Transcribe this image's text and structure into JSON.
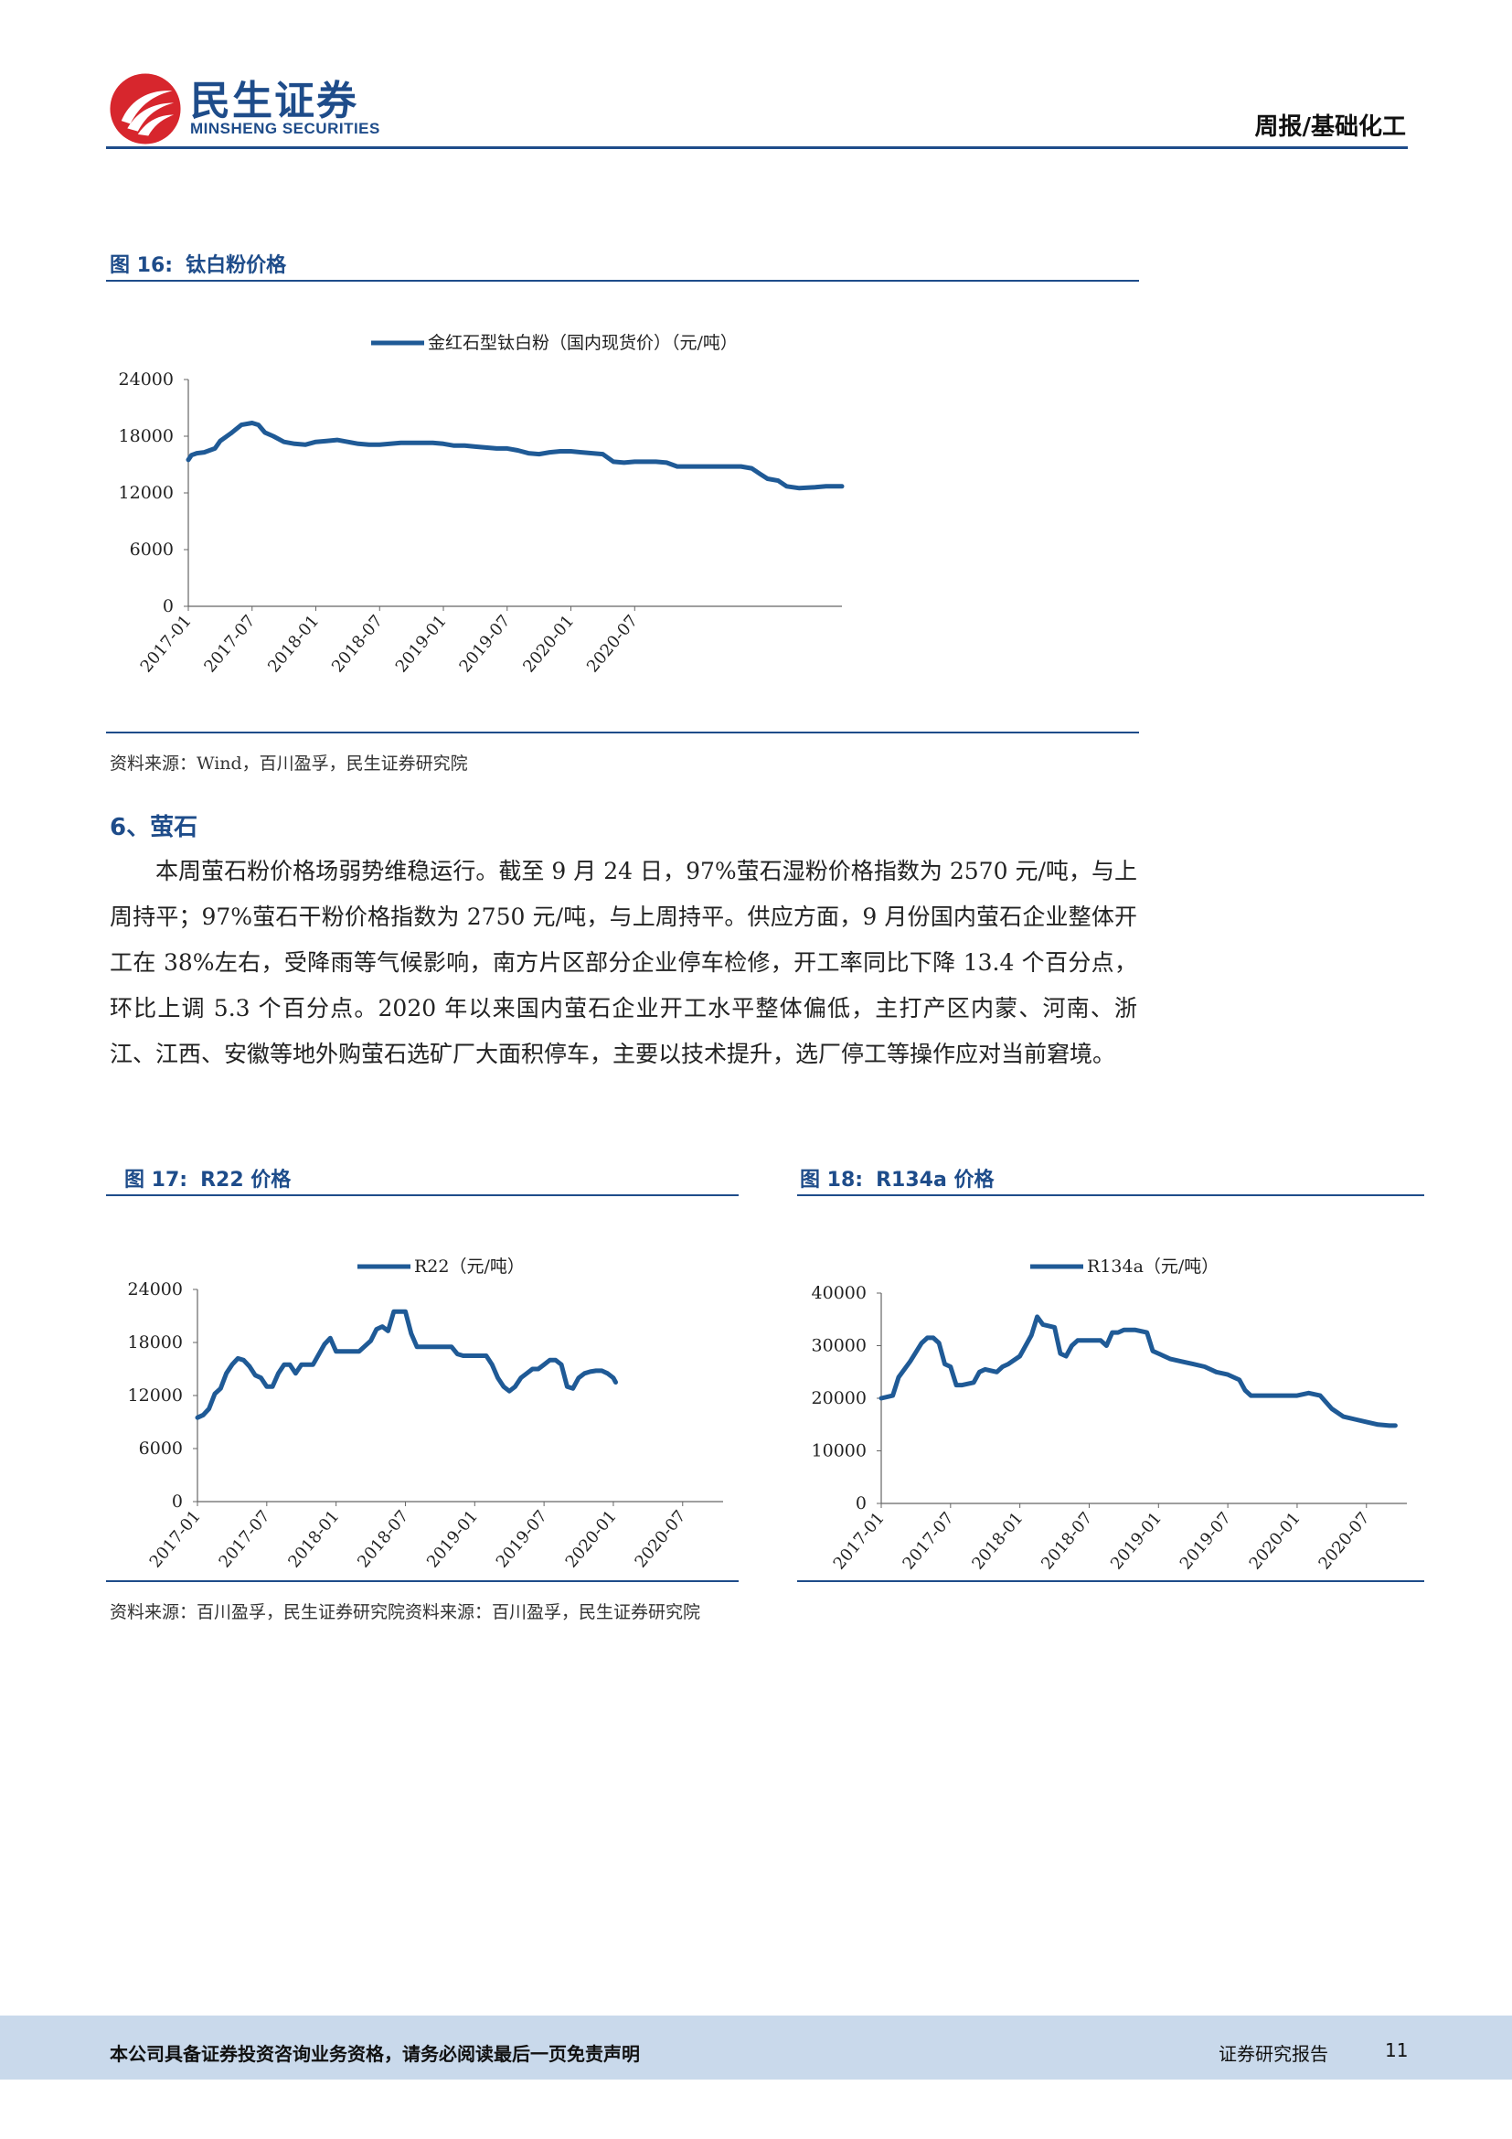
{
  "header": {
    "brand_cn": "民生证券",
    "brand_en": "MINSHENG SECURITIES",
    "category": "周报/基础化工",
    "brand_color": "#1e4c8a",
    "logo_color": "#d7262d"
  },
  "fig16": {
    "title_num": "图 16:",
    "title": "钛白粉价格",
    "source": "资料来源：Wind，百川盈孚，民生证券研究院"
  },
  "section6": {
    "title": "6、萤石",
    "paragraph": "本周萤石粉价格场弱势维稳运行。截至 9 月 24 日，97%萤石湿粉价格指数为 2570 元/吨，与上周持平；97%萤石干粉价格指数为 2750 元/吨，与上周持平。供应方面，9 月份国内萤石企业整体开工在 38%左右，受降雨等气候影响，南方片区部分企业停车检修，开工率同比下降 13.4 个百分点，环比上调 5.3 个百分点。2020 年以来国内萤石企业开工水平整体偏低，主打产区内蒙、河南、浙江、江西、安徽等地外购萤石选矿厂大面积停车，主要以技术提升，选厂停工等操作应对当前窘境。"
  },
  "fig17": {
    "title_num": "图 17:",
    "title": "R22 价格"
  },
  "fig18": {
    "title_num": "图 18:",
    "title": "R134a 价格"
  },
  "source_combined": "资料来源：百川盈孚，民生证券研究院资料来源：百川盈孚，民生证券研究院",
  "footer": {
    "disclaimer": "本公司具备证券投资咨询业务资格，请务必阅读最后一页免责声明",
    "report_type": "证券研究报告",
    "page": "11"
  },
  "chart_data": [
    {
      "type": "line",
      "id": "fig16",
      "series": [
        {
          "name": "金红石型钛白粉（国内现货价）（元/吨）",
          "color": "#1f5a96",
          "points": [
            [
              0,
              15500
            ],
            [
              0.3,
              16000
            ],
            [
              0.8,
              16200
            ],
            [
              1.5,
              16300
            ],
            [
              2.5,
              16700
            ],
            [
              3,
              17500
            ],
            [
              4,
              18300
            ],
            [
              5,
              19200
            ],
            [
              6,
              19400
            ],
            [
              6.6,
              19200
            ],
            [
              7.2,
              18400
            ],
            [
              8,
              18000
            ],
            [
              9,
              17400
            ],
            [
              10,
              17200
            ],
            [
              11,
              17100
            ],
            [
              12,
              17400
            ],
            [
              13,
              17500
            ],
            [
              14,
              17600
            ],
            [
              15,
              17400
            ],
            [
              16,
              17200
            ],
            [
              17,
              17100
            ],
            [
              18,
              17100
            ],
            [
              19,
              17200
            ],
            [
              20,
              17300
            ],
            [
              21,
              17300
            ],
            [
              22,
              17300
            ],
            [
              23,
              17300
            ],
            [
              24,
              17200
            ],
            [
              25,
              17000
            ],
            [
              26,
              17000
            ],
            [
              27,
              16900
            ],
            [
              28,
              16800
            ],
            [
              29,
              16700
            ],
            [
              30,
              16700
            ],
            [
              31,
              16500
            ],
            [
              32,
              16200
            ],
            [
              33,
              16100
            ],
            [
              34,
              16300
            ],
            [
              35,
              16400
            ],
            [
              36,
              16400
            ],
            [
              37,
              16300
            ],
            [
              38,
              16200
            ],
            [
              39,
              16100
            ],
            [
              40,
              15300
            ],
            [
              41,
              15200
            ],
            [
              42,
              15300
            ],
            [
              43,
              15300
            ],
            [
              44,
              15300
            ],
            [
              45,
              15200
            ],
            [
              46,
              14800
            ],
            [
              47,
              14800
            ],
            [
              48,
              14800
            ],
            [
              49,
              14800
            ],
            [
              50,
              14800
            ],
            [
              51,
              14800
            ],
            [
              52,
              14800
            ],
            [
              53,
              14600
            ],
            [
              53.8,
              14000
            ],
            [
              54.5,
              13500
            ],
            [
              55.5,
              13300
            ],
            [
              56.3,
              12700
            ],
            [
              57.5,
              12500
            ],
            [
              59,
              12600
            ],
            [
              60,
              12700
            ],
            [
              61,
              12700
            ],
            [
              61.5,
              12700
            ]
          ]
        }
      ],
      "x_ticks": [
        "2017-01",
        "2017-07",
        "2018-01",
        "2018-07",
        "2019-01",
        "2019-07",
        "2020-01",
        "2020-07"
      ],
      "x_tick_months": [
        0,
        6,
        12,
        18,
        24,
        30,
        36,
        42
      ],
      "xlim": [
        0,
        61.5
      ],
      "y_ticks": [
        0,
        6000,
        12000,
        18000,
        24000
      ],
      "ylim": [
        0,
        24000
      ],
      "legend_position": "top-center"
    },
    {
      "type": "line",
      "id": "fig17",
      "series": [
        {
          "name": "R22（元/吨）",
          "color": "#1f5a96",
          "points": [
            [
              0,
              9500
            ],
            [
              0.5,
              9800
            ],
            [
              1,
              10500
            ],
            [
              1.5,
              12200
            ],
            [
              2,
              12800
            ],
            [
              2.5,
              14500
            ],
            [
              3,
              15500
            ],
            [
              3.5,
              16200
            ],
            [
              4,
              16000
            ],
            [
              4.5,
              15300
            ],
            [
              5,
              14300
            ],
            [
              5.5,
              14000
            ],
            [
              6,
              13000
            ],
            [
              6.5,
              13000
            ],
            [
              7,
              14500
            ],
            [
              7.5,
              15500
            ],
            [
              8,
              15500
            ],
            [
              8.5,
              14500
            ],
            [
              9,
              15500
            ],
            [
              10,
              15500
            ],
            [
              11,
              17800
            ],
            [
              11.5,
              18500
            ],
            [
              12,
              17000
            ],
            [
              13,
              17000
            ],
            [
              14,
              17000
            ],
            [
              15,
              18200
            ],
            [
              15.5,
              19500
            ],
            [
              16,
              19800
            ],
            [
              16.5,
              19300
            ],
            [
              17,
              21500
            ],
            [
              18,
              21500
            ],
            [
              18.5,
              19000
            ],
            [
              19,
              17500
            ],
            [
              20,
              17500
            ],
            [
              21,
              17500
            ],
            [
              22,
              17500
            ],
            [
              22.5,
              16700
            ],
            [
              23,
              16500
            ],
            [
              24,
              16500
            ],
            [
              25,
              16500
            ],
            [
              25.5,
              15500
            ],
            [
              26,
              14000
            ],
            [
              26.5,
              13000
            ],
            [
              27,
              12500
            ],
            [
              27.5,
              13000
            ],
            [
              28,
              14000
            ],
            [
              28.5,
              14500
            ],
            [
              29,
              15000
            ],
            [
              29.5,
              15000
            ],
            [
              30,
              15500
            ],
            [
              30.5,
              16000
            ],
            [
              31,
              16000
            ],
            [
              31.5,
              15500
            ],
            [
              32,
              13000
            ],
            [
              32.5,
              12800
            ],
            [
              33,
              14000
            ],
            [
              33.5,
              14500
            ],
            [
              34,
              14700
            ],
            [
              34.5,
              14800
            ],
            [
              35,
              14800
            ],
            [
              35.5,
              14500
            ],
            [
              36,
              14000
            ],
            [
              36.2,
              13500
            ]
          ]
        }
      ],
      "x_ticks": [
        "2017-01",
        "2017-07",
        "2018-01",
        "2018-07",
        "2019-01",
        "2019-07",
        "2020-01",
        "2020-07"
      ],
      "x_tick_months": [
        0,
        6,
        12,
        18,
        24,
        30,
        36,
        42
      ],
      "xlim": [
        0,
        45.5
      ],
      "y_ticks": [
        0,
        6000,
        12000,
        18000,
        24000
      ],
      "ylim": [
        0,
        24000
      ],
      "legend_position": "top-center"
    },
    {
      "type": "line",
      "id": "fig18",
      "series": [
        {
          "name": "R134a（元/吨）",
          "color": "#1f5a96",
          "points": [
            [
              0,
              20000
            ],
            [
              1,
              20500
            ],
            [
              1.5,
              24000
            ],
            [
              2.5,
              27000
            ],
            [
              3.5,
              30500
            ],
            [
              4,
              31500
            ],
            [
              4.5,
              31500
            ],
            [
              5,
              30500
            ],
            [
              5.5,
              26500
            ],
            [
              6,
              26000
            ],
            [
              6.5,
              22500
            ],
            [
              7,
              22500
            ],
            [
              8,
              23000
            ],
            [
              8.5,
              25000
            ],
            [
              9,
              25500
            ],
            [
              10,
              25000
            ],
            [
              10.5,
              26000
            ],
            [
              11,
              26500
            ],
            [
              12,
              28000
            ],
            [
              13,
              32000
            ],
            [
              13.5,
              35500
            ],
            [
              14,
              34000
            ],
            [
              15,
              33500
            ],
            [
              15.5,
              28500
            ],
            [
              16,
              28000
            ],
            [
              16.5,
              30000
            ],
            [
              17,
              31000
            ],
            [
              18,
              31000
            ],
            [
              19,
              31000
            ],
            [
              19.5,
              30000
            ],
            [
              20,
              32500
            ],
            [
              20.5,
              32500
            ],
            [
              21,
              33000
            ],
            [
              22,
              33000
            ],
            [
              23,
              32500
            ],
            [
              23.5,
              29000
            ],
            [
              24,
              28500
            ],
            [
              25,
              27500
            ],
            [
              26,
              27000
            ],
            [
              27,
              26500
            ],
            [
              28,
              26000
            ],
            [
              29,
              25000
            ],
            [
              30,
              24500
            ],
            [
              31,
              23500
            ],
            [
              31.5,
              21500
            ],
            [
              32,
              20500
            ],
            [
              33,
              20500
            ],
            [
              34,
              20500
            ],
            [
              35,
              20500
            ],
            [
              36,
              20500
            ],
            [
              37,
              21000
            ],
            [
              38,
              20500
            ],
            [
              39,
              18000
            ],
            [
              40,
              16500
            ],
            [
              41,
              16000
            ],
            [
              42,
              15500
            ],
            [
              43,
              15000
            ],
            [
              44,
              14800
            ],
            [
              44.5,
              14800
            ]
          ]
        }
      ],
      "x_ticks": [
        "2017-01",
        "2017-07",
        "2018-01",
        "2018-07",
        "2019-01",
        "2019-07",
        "2020-01",
        "2020-07"
      ],
      "x_tick_months": [
        0,
        6,
        12,
        18,
        24,
        30,
        36,
        42
      ],
      "xlim": [
        0,
        45.5
      ],
      "y_ticks": [
        0,
        10000,
        20000,
        30000,
        40000
      ],
      "ylim": [
        0,
        40000
      ],
      "legend_position": "top-center"
    }
  ]
}
